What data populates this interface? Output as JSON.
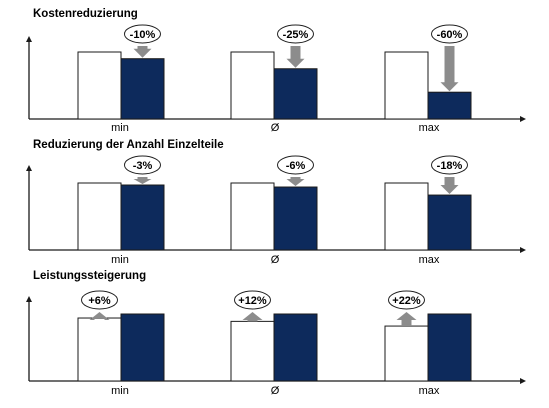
{
  "colors": {
    "baseline_fill": "#ffffff",
    "improved_fill": "#0d2a5c",
    "bar_stroke": "#1a1a1a",
    "arrow_fill": "#8c8c8c",
    "axis": "#1a1a1a"
  },
  "chart_data": [
    {
      "type": "bar",
      "title": "Kostenreduzierung",
      "categories": [
        "min",
        "Ø",
        "max"
      ],
      "series": [
        {
          "values": [
            100,
            100,
            100
          ]
        },
        {
          "values": [
            90,
            75,
            40
          ]
        }
      ],
      "annotations": [
        "-10%",
        "-25%",
        "-60%"
      ],
      "arrow_direction": "down",
      "ylim": [
        0,
        100
      ]
    },
    {
      "type": "bar",
      "title": "Reduzierung der Anzahl Einzelteile",
      "categories": [
        "min",
        "Ø",
        "max"
      ],
      "series": [
        {
          "values": [
            100,
            100,
            100
          ]
        },
        {
          "values": [
            97,
            94,
            82
          ]
        }
      ],
      "annotations": [
        "-3%",
        "-6%",
        "-18%"
      ],
      "arrow_direction": "down",
      "ylim": [
        0,
        100
      ]
    },
    {
      "type": "bar",
      "title": "Leistungssteigerung",
      "categories": [
        "min",
        "Ø",
        "max"
      ],
      "series": [
        {
          "values": [
            94,
            89,
            82
          ]
        },
        {
          "values": [
            100,
            100,
            100
          ]
        }
      ],
      "annotations": [
        "+6%",
        "+12%",
        "+22%"
      ],
      "arrow_direction": "up",
      "ylim": [
        0,
        100
      ]
    }
  ]
}
